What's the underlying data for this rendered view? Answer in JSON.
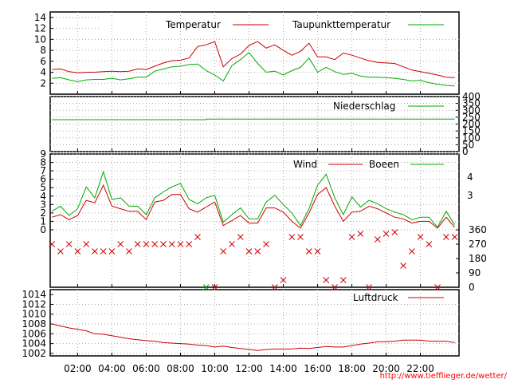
{
  "chart_data": [
    {
      "type": "line",
      "ylim": [
        0,
        15
      ],
      "yticks": [
        2,
        4,
        6,
        8,
        10,
        12,
        14
      ],
      "x": [
        0,
        0.5,
        1,
        1.5,
        2,
        2.5,
        3,
        3.5,
        4,
        4.5,
        5,
        5.5,
        6,
        6.5,
        7,
        7.5,
        8,
        8.5,
        9,
        9.5,
        10,
        10.5,
        11,
        11.5,
        12,
        12.5,
        13,
        13.5,
        14,
        14.5,
        15,
        15.5,
        16,
        16.5,
        17,
        17.5,
        18,
        18.5,
        19,
        19.5,
        20,
        20.5,
        21,
        21.5,
        22,
        22.5,
        23,
        23.5
      ],
      "series": [
        {
          "name": "Temperatur",
          "color": "#cc0000",
          "values": [
            4.5,
            4.6,
            4.1,
            3.9,
            4.0,
            4.0,
            4.1,
            4.2,
            4.1,
            4.2,
            4.6,
            4.5,
            5.1,
            5.7,
            6.1,
            6.2,
            6.6,
            8.7,
            9.0,
            9.6,
            5.0,
            6.5,
            7.3,
            8.9,
            9.6,
            8.4,
            9.0,
            8.0,
            7.1,
            7.8,
            9.3,
            6.8,
            6.8,
            6.3,
            7.5,
            7.1,
            6.6,
            6.1,
            5.8,
            5.7,
            5.6,
            5.0,
            4.4,
            4.1,
            3.8,
            3.5,
            3.1,
            3.0
          ]
        },
        {
          "name": "Taupunkttemperatur",
          "color": "#00aa00",
          "values": [
            2.9,
            3.0,
            2.6,
            2.3,
            2.6,
            2.7,
            2.7,
            2.9,
            2.6,
            2.8,
            3.1,
            3.1,
            4.2,
            4.6,
            5.0,
            5.1,
            5.4,
            5.5,
            4.3,
            3.5,
            2.4,
            5.2,
            6.3,
            7.6,
            5.6,
            4.0,
            4.2,
            3.5,
            4.3,
            4.9,
            6.6,
            4.0,
            4.9,
            4.1,
            3.6,
            3.8,
            3.3,
            3.1,
            3.1,
            3.0,
            2.9,
            2.7,
            2.4,
            2.5,
            2.1,
            1.8,
            1.6,
            1.5
          ]
        }
      ]
    },
    {
      "type": "line",
      "ylim": [
        0,
        400
      ],
      "yticks": [
        0,
        50,
        100,
        150,
        200,
        250,
        300,
        350,
        400
      ],
      "x": [
        0,
        9,
        9.01,
        23.5
      ],
      "series": [
        {
          "name": "Niederschlag",
          "color": "#00aa00",
          "values": [
            232,
            232,
            236,
            236
          ]
        }
      ]
    },
    {
      "type": "line",
      "ylim": [
        0,
        9
      ],
      "yticks": [
        0,
        1,
        2,
        3,
        4,
        5,
        6,
        7,
        8,
        9
      ],
      "right_ticks": [
        "4",
        "3"
      ],
      "x": [
        0,
        0.5,
        1,
        1.5,
        2,
        2.5,
        3,
        3.5,
        4,
        4.5,
        5,
        5.5,
        6,
        6.5,
        7,
        7.5,
        8,
        8.5,
        9,
        9.5,
        10,
        10.5,
        11,
        11.5,
        12,
        12.5,
        13,
        13.5,
        14,
        14.5,
        15,
        15.5,
        16,
        16.5,
        17,
        17.5,
        18,
        18.5,
        19,
        19.5,
        20,
        20.5,
        21,
        21.5,
        22,
        22.5,
        23,
        23.5
      ],
      "series": [
        {
          "name": "Wind",
          "color": "#cc0000",
          "values": [
            1.5,
            1.8,
            1.2,
            1.7,
            3.5,
            3.2,
            5.3,
            2.8,
            2.5,
            2.2,
            2.2,
            1.2,
            3.3,
            3.5,
            4.2,
            4.2,
            2.5,
            2.1,
            2.7,
            3.3,
            0.5,
            1.1,
            1.7,
            0.8,
            0.8,
            2.6,
            2.6,
            2.1,
            1.0,
            0.2,
            2.0,
            4.2,
            5.0,
            2.8,
            1.0,
            2.1,
            2.2,
            2.8,
            2.5,
            2.0,
            1.5,
            1.3,
            0.8,
            1.0,
            1.0,
            0.2,
            1.5,
            0.3
          ]
        },
        {
          "name": "Boeen",
          "color": "#00aa00",
          "values": [
            2.2,
            2.8,
            1.7,
            2.5,
            5.1,
            3.8,
            6.9,
            3.6,
            3.8,
            2.8,
            2.8,
            1.8,
            3.8,
            4.5,
            5.1,
            5.5,
            3.6,
            3.1,
            3.8,
            4.1,
            0.9,
            1.8,
            2.6,
            1.3,
            1.3,
            3.3,
            4.1,
            3.0,
            2.0,
            0.5,
            2.5,
            5.3,
            6.6,
            3.8,
            1.8,
            3.9,
            2.7,
            3.5,
            3.1,
            2.5,
            2.1,
            1.8,
            1.2,
            1.5,
            1.5,
            0.3,
            2.2,
            0.6
          ]
        }
      ]
    },
    {
      "type": "scatter",
      "ylim": [
        0,
        360
      ],
      "yticks": [
        0,
        90,
        180,
        270,
        360
      ],
      "marker": "x",
      "color": "#cc0000",
      "x": [
        0,
        0.5,
        1,
        1.5,
        2,
        2.5,
        3,
        3.5,
        4,
        4.5,
        5,
        5.5,
        6,
        6.5,
        7,
        7.5,
        8,
        8.5,
        9,
        9.5,
        10,
        10.5,
        11,
        11.5,
        12,
        12.5,
        13,
        13.5,
        14,
        14.5,
        15,
        15.5,
        16,
        16.5,
        17,
        17.5,
        18,
        18.5,
        19,
        19.5,
        20,
        20.5,
        21,
        21.5,
        22,
        22.5,
        23,
        23.5
      ],
      "values": [
        270,
        225,
        270,
        225,
        270,
        225,
        225,
        225,
        270,
        225,
        270,
        270,
        270,
        270,
        270,
        270,
        270,
        315,
        0,
        0,
        225,
        270,
        315,
        225,
        225,
        270,
        0,
        45,
        315,
        315,
        225,
        225,
        45,
        0,
        45,
        315,
        335,
        0,
        300,
        335,
        345,
        135,
        225,
        315,
        270,
        0,
        315,
        315
      ]
    },
    {
      "type": "line",
      "ylim": [
        1001.5,
        1015
      ],
      "yticks": [
        1002,
        1004,
        1006,
        1008,
        1010,
        1012,
        1014
      ],
      "x": [
        0,
        0.5,
        1,
        1.5,
        2,
        2.5,
        3,
        3.5,
        4,
        4.5,
        5,
        5.5,
        6,
        6.5,
        7,
        7.5,
        8,
        8.5,
        9,
        9.5,
        10,
        10.5,
        11,
        11.5,
        12,
        12.5,
        13,
        13.5,
        14,
        14.5,
        15,
        15.5,
        16,
        16.5,
        17,
        17.5,
        18,
        18.5,
        19,
        19.5,
        20,
        20.5,
        21,
        21.5,
        22,
        22.5,
        23,
        23.5
      ],
      "series": [
        {
          "name": "Luftdruck",
          "color": "#cc0000",
          "values": [
            1008.0,
            1007.6,
            1007.2,
            1006.9,
            1006.6,
            1006.0,
            1005.9,
            1005.6,
            1005.3,
            1005.0,
            1004.8,
            1004.6,
            1004.5,
            1004.2,
            1004.1,
            1004.0,
            1003.9,
            1003.7,
            1003.6,
            1003.3,
            1003.5,
            1003.2,
            1003.0,
            1002.8,
            1002.6,
            1002.8,
            1002.9,
            1002.9,
            1002.9,
            1003.1,
            1003.0,
            1003.2,
            1003.4,
            1003.3,
            1003.3,
            1003.6,
            1003.9,
            1004.1,
            1004.4,
            1004.4,
            1004.5,
            1004.7,
            1004.7,
            1004.7,
            1004.5,
            1004.5,
            1004.5,
            1004.2
          ]
        }
      ]
    }
  ],
  "x_axis": {
    "tick_hours": [
      1.5,
      3.5,
      5.5,
      7.5,
      9.5,
      11.5,
      13.5,
      15.5,
      17.5,
      19.5,
      21.5
    ],
    "tick_labels": [
      "02:00",
      "04:00",
      "06:00",
      "08:00",
      "10:00",
      "12:00",
      "14:00",
      "16:00",
      "18:00",
      "20:00",
      "22:00"
    ]
  },
  "legend": {
    "temp": "Temperatur",
    "dew": "Taupunkttemperatur",
    "rain": "Niederschlag",
    "wind": "Wind",
    "gust": "Boeen",
    "pressure": "Luftdruck"
  },
  "footer_url": "http://www.tiefflieger.de/wetter/"
}
